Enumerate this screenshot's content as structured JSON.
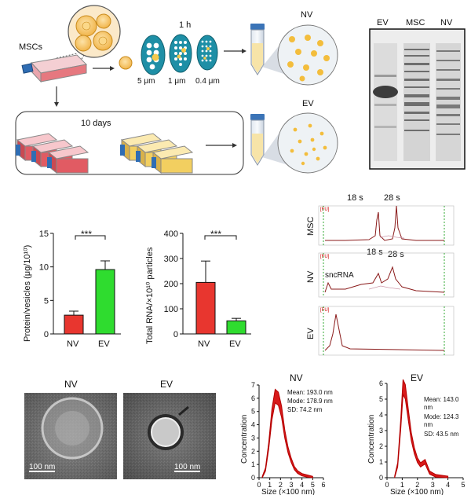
{
  "schematic": {
    "msc_label": "MSCs",
    "time_label": "1 h",
    "filters": [
      "5 μm",
      "1 μm",
      "0.4 μm"
    ],
    "nv_label": "NV",
    "ev_label": "EV",
    "culture_label": "10 days"
  },
  "gel": {
    "lanes": [
      "EV",
      "MSC",
      "NV"
    ]
  },
  "protein_chart": {
    "ylabel": "Protein/vesicles (μg/10¹⁰)",
    "significance": "***",
    "categories": [
      "NV",
      "EV"
    ],
    "colors": [
      "#e8362f",
      "#2fdc2f"
    ],
    "yticks": [
      "0",
      "5",
      "10",
      "15"
    ]
  },
  "rna_chart": {
    "ylabel": "Total RNA/×10¹⁰ particles",
    "significance": "***",
    "categories": [
      "NV",
      "EV"
    ],
    "colors": [
      "#e8362f",
      "#2fdc2f"
    ],
    "yticks": [
      "0",
      "100",
      "200",
      "300",
      "400"
    ]
  },
  "bioanalyzer": {
    "fu": "[FU]",
    "panels": [
      "MSC",
      "NV",
      "EV"
    ],
    "peak_18s": "18 s",
    "peak_28s": "28 s",
    "peak_18s_nv": "18 s",
    "peak_28s_nv": "28 s",
    "smallrna": "sncRNA"
  },
  "tem": {
    "nv_title": "NV",
    "ev_title": "EV",
    "scale_nv": "100 nm",
    "scale_ev": "100 nm"
  },
  "nta_nv": {
    "title": "NV",
    "ylabel": "Concentration",
    "xlabel": "Size (×100 nm)",
    "mean": "Mean: 193.0 nm",
    "mode": "Mode: 178.9 nm",
    "sd": "SD: 74.2 nm",
    "xticks": [
      "0",
      "1",
      "2",
      "3",
      "4",
      "5",
      "6"
    ],
    "yticks": [
      "0",
      "1",
      "2",
      "3",
      "4",
      "5",
      "6",
      "7"
    ]
  },
  "nta_ev": {
    "title": "EV",
    "ylabel": "Concentration",
    "xlabel": "Size (×100 nm)",
    "mean1": "Mean: 143.0",
    "mean2": "nm",
    "mode1": "Mode: 124.3",
    "mode2": "nm",
    "sd": "SD: 43.5 nm",
    "xticks": [
      "0",
      "1",
      "2",
      "3",
      "4",
      "5"
    ],
    "yticks": [
      "0",
      "1",
      "2",
      "3",
      "4",
      "5",
      "6"
    ]
  },
  "chart_data": [
    {
      "type": "bar",
      "categories": [
        "NV",
        "EV"
      ],
      "values": [
        2.8,
        9.6
      ],
      "errors": [
        0.6,
        1.3
      ],
      "ylabel": "Protein/vesicles (μg/10¹⁰)",
      "ylim": [
        0,
        15
      ],
      "significance": "***"
    },
    {
      "type": "bar",
      "categories": [
        "NV",
        "EV"
      ],
      "values": [
        205,
        52
      ],
      "errors": [
        85,
        10
      ],
      "ylabel": "Total RNA/×10¹⁰ particles",
      "ylim": [
        0,
        400
      ],
      "significance": "***"
    },
    {
      "type": "line",
      "title": "NV",
      "xlabel": "Size (×100 nm)",
      "ylabel": "Concentration",
      "xlim": [
        0,
        6
      ],
      "ylim": [
        0,
        7
      ],
      "x": [
        0.3,
        0.6,
        0.9,
        1.2,
        1.5,
        1.8,
        2.1,
        2.4,
        2.7,
        3.0,
        3.3,
        3.6,
        4.0,
        4.5,
        5.0
      ],
      "y": [
        0.0,
        0.6,
        2.4,
        4.8,
        6.2,
        6.0,
        5.0,
        3.3,
        2.1,
        1.3,
        0.7,
        0.4,
        0.2,
        0.1,
        0.0
      ]
    },
    {
      "type": "line",
      "title": "EV",
      "xlabel": "Size (×100 nm)",
      "ylabel": "Concentration",
      "xlim": [
        0,
        5
      ],
      "ylim": [
        0,
        6
      ],
      "x": [
        0.5,
        0.7,
        0.9,
        1.05,
        1.2,
        1.4,
        1.6,
        1.8,
        2.0,
        2.2,
        2.5,
        2.8,
        3.2,
        4.0
      ],
      "y": [
        0.0,
        0.8,
        3.4,
        5.8,
        5.5,
        4.0,
        2.6,
        1.7,
        1.1,
        0.8,
        1.0,
        0.3,
        0.1,
        0.0
      ]
    }
  ]
}
